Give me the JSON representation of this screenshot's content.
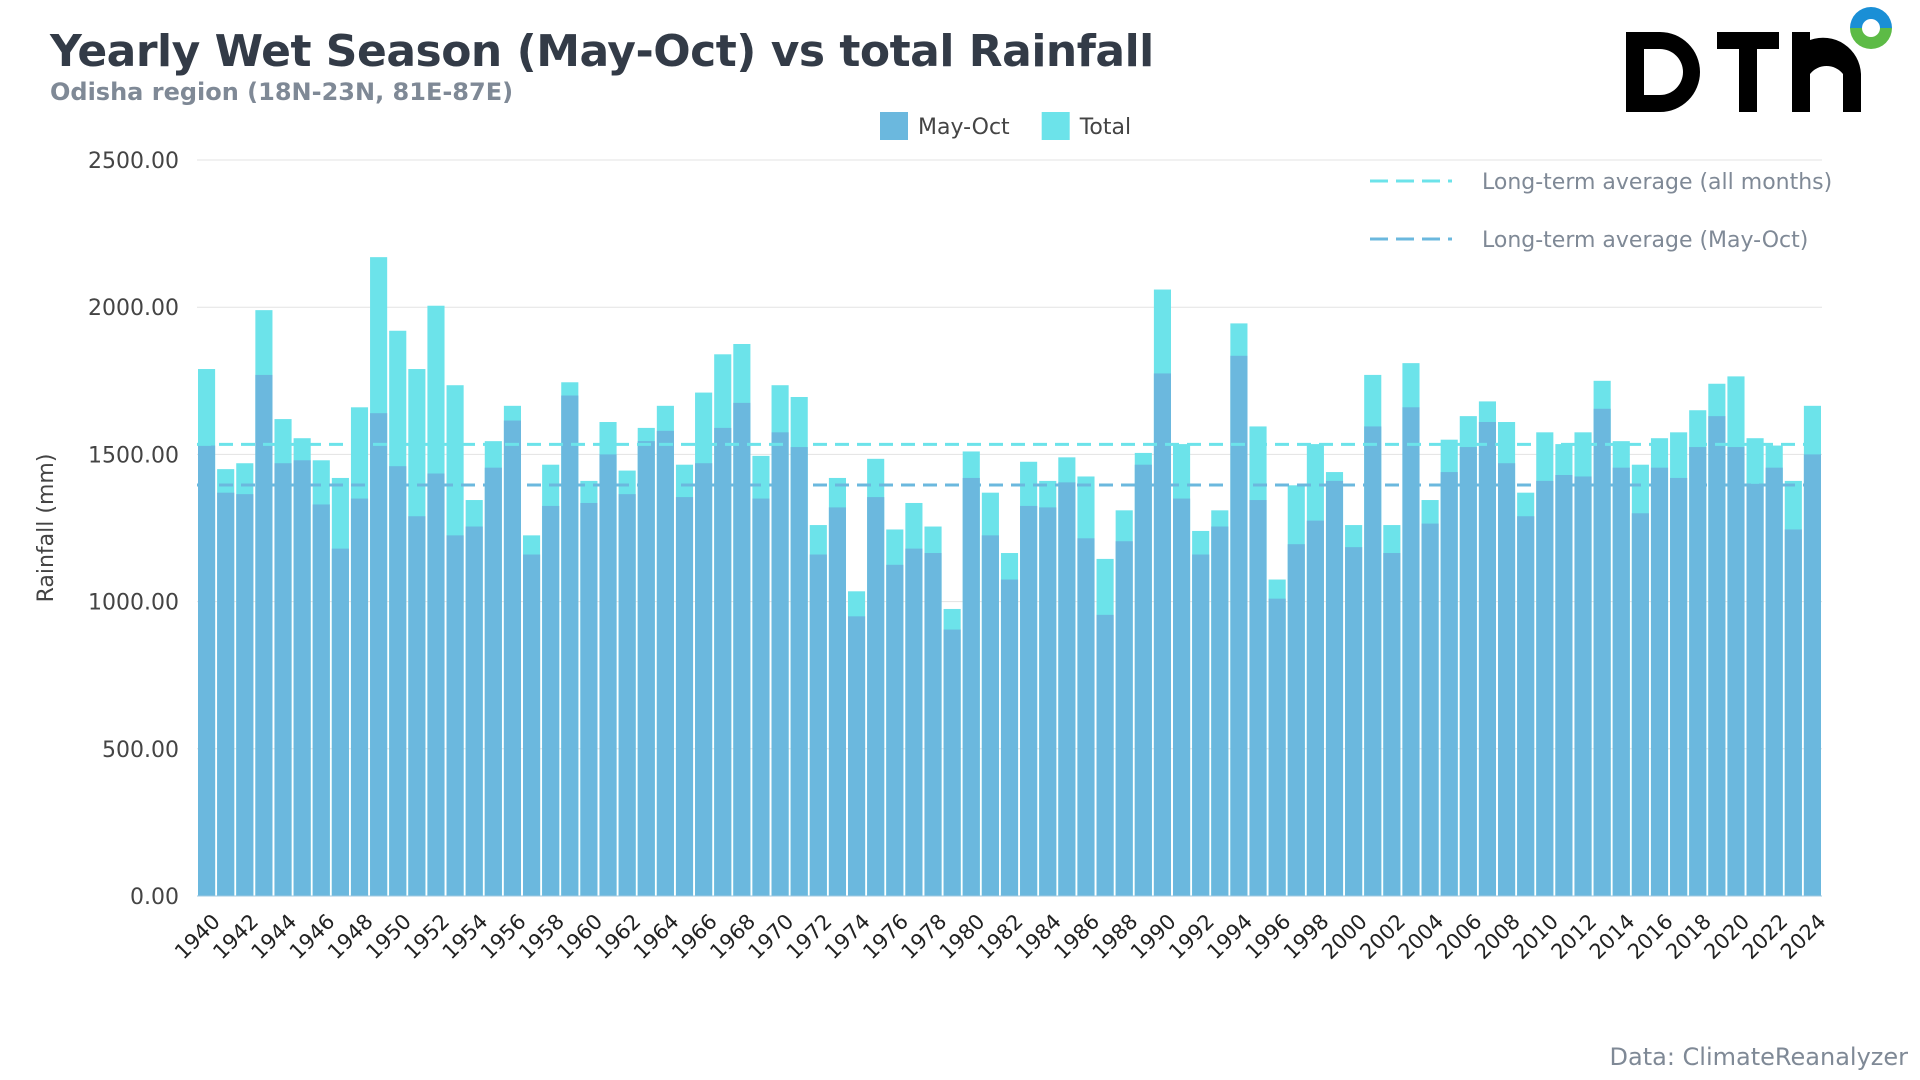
{
  "header": {
    "title": "Yearly Wet Season (May-Oct) vs total Rainfall",
    "subtitle": "Odisha region (18N-23N, 81E-87E)"
  },
  "logo": {
    "text": "DTN",
    "colors": {
      "ring_top": "#1a8fd6",
      "ring_bottom": "#5dbb46"
    }
  },
  "source": "Data: ClimateReanalyzer",
  "chart_data": {
    "type": "bar",
    "title": "Yearly Wet Season (May-Oct) vs total Rainfall",
    "ylabel": "Rainfall (mm)",
    "xlabel": "",
    "ylim": [
      0,
      2500
    ],
    "yticks": [
      "0.00",
      "500.00",
      "1000.00",
      "1500.00",
      "2000.00",
      "2500.00"
    ],
    "grid": true,
    "legend_placement": "top-center",
    "categories": [
      1940,
      1941,
      1942,
      1943,
      1944,
      1945,
      1946,
      1947,
      1948,
      1949,
      1950,
      1951,
      1952,
      1953,
      1954,
      1955,
      1956,
      1957,
      1958,
      1959,
      1960,
      1961,
      1962,
      1963,
      1964,
      1965,
      1966,
      1967,
      1968,
      1969,
      1970,
      1971,
      1972,
      1973,
      1974,
      1975,
      1976,
      1977,
      1978,
      1979,
      1980,
      1981,
      1982,
      1983,
      1984,
      1985,
      1986,
      1987,
      1988,
      1989,
      1990,
      1991,
      1992,
      1993,
      1994,
      1995,
      1996,
      1997,
      1998,
      1999,
      2000,
      2001,
      2002,
      2003,
      2004,
      2005,
      2006,
      2007,
      2008,
      2009,
      2010,
      2011,
      2012,
      2013,
      2014,
      2015,
      2016,
      2017,
      2018,
      2019,
      2020,
      2021,
      2022,
      2023,
      2024
    ],
    "series": [
      {
        "name": "May-Oct",
        "color": "#6bb8de",
        "values": [
          1530,
          1370,
          1365,
          1770,
          1470,
          1480,
          1330,
          1180,
          1350,
          1640,
          1460,
          1290,
          1435,
          1225,
          1255,
          1455,
          1615,
          1160,
          1325,
          1700,
          1335,
          1500,
          1365,
          1545,
          1580,
          1355,
          1470,
          1590,
          1675,
          1350,
          1575,
          1525,
          1160,
          1320,
          950,
          1355,
          1125,
          1180,
          1165,
          905,
          1420,
          1225,
          1075,
          1325,
          1320,
          1405,
          1215,
          955,
          1205,
          1465,
          1775,
          1350,
          1160,
          1255,
          1835,
          1345,
          1010,
          1195,
          1275,
          1410,
          1185,
          1595,
          1165,
          1660,
          1265,
          1440,
          1525,
          1610,
          1470,
          1290,
          1410,
          1430,
          1425,
          1655,
          1455,
          1300,
          1455,
          1420,
          1525,
          1630,
          1525,
          1400,
          1455,
          1245,
          1500
        ]
      },
      {
        "name": "Total",
        "color": "#6ce3ea",
        "values": [
          1790,
          1450,
          1470,
          1990,
          1620,
          1555,
          1480,
          1420,
          1660,
          2170,
          1920,
          1790,
          2005,
          1735,
          1345,
          1545,
          1665,
          1225,
          1465,
          1745,
          1410,
          1610,
          1445,
          1590,
          1665,
          1465,
          1710,
          1840,
          1875,
          1495,
          1735,
          1695,
          1260,
          1420,
          1035,
          1485,
          1245,
          1335,
          1255,
          975,
          1510,
          1370,
          1165,
          1475,
          1410,
          1490,
          1425,
          1145,
          1310,
          1505,
          2060,
          1535,
          1240,
          1310,
          1945,
          1595,
          1075,
          1395,
          1535,
          1440,
          1260,
          1770,
          1260,
          1810,
          1345,
          1550,
          1630,
          1680,
          1610,
          1370,
          1575,
          1535,
          1575,
          1750,
          1545,
          1465,
          1555,
          1575,
          1650,
          1740,
          1765,
          1555,
          1530,
          1410,
          1665
        ]
      }
    ],
    "reference_lines": [
      {
        "name": "Long-term average (all months)",
        "value": 1534,
        "color": "#6ce3ea",
        "style": "dashed"
      },
      {
        "name": "Long-term average (May-Oct)",
        "value": 1396,
        "color": "#6bb8de",
        "style": "dashed"
      }
    ]
  }
}
